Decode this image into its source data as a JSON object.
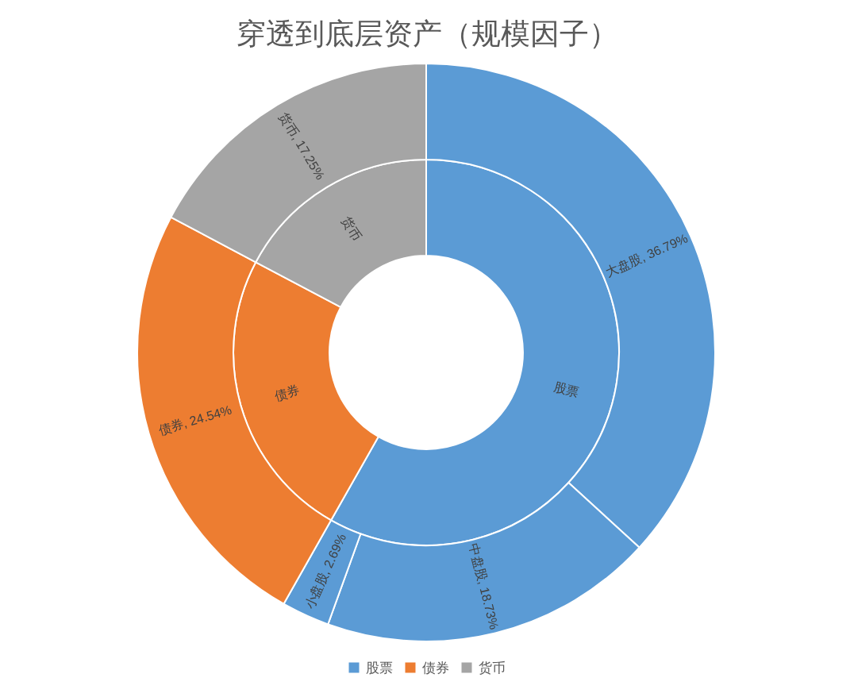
{
  "chart_data": [
    {
      "type": "donut",
      "title": "穿透到底层资产（规模因子）",
      "legend": "bottom",
      "categories": [
        "股票",
        "债券",
        "货币"
      ],
      "values": [
        58.21,
        24.54,
        17.25
      ],
      "colors": [
        "#5b9bd5",
        "#ed7d31",
        "#a5a5a5"
      ]
    },
    {
      "type": "donut",
      "categories": [
        "大盘股",
        "中盘股",
        "小盘股",
        "债券",
        "货币"
      ],
      "values": [
        36.79,
        18.73,
        2.69,
        24.54,
        17.25
      ],
      "colors": [
        "#5b9bd5",
        "#5b9bd5",
        "#5b9bd5",
        "#ed7d31",
        "#a5a5a5"
      ],
      "value_labels": [
        "36.79%",
        "18.73%",
        "2.69%",
        "24.54%",
        "17.25%"
      ]
    }
  ]
}
